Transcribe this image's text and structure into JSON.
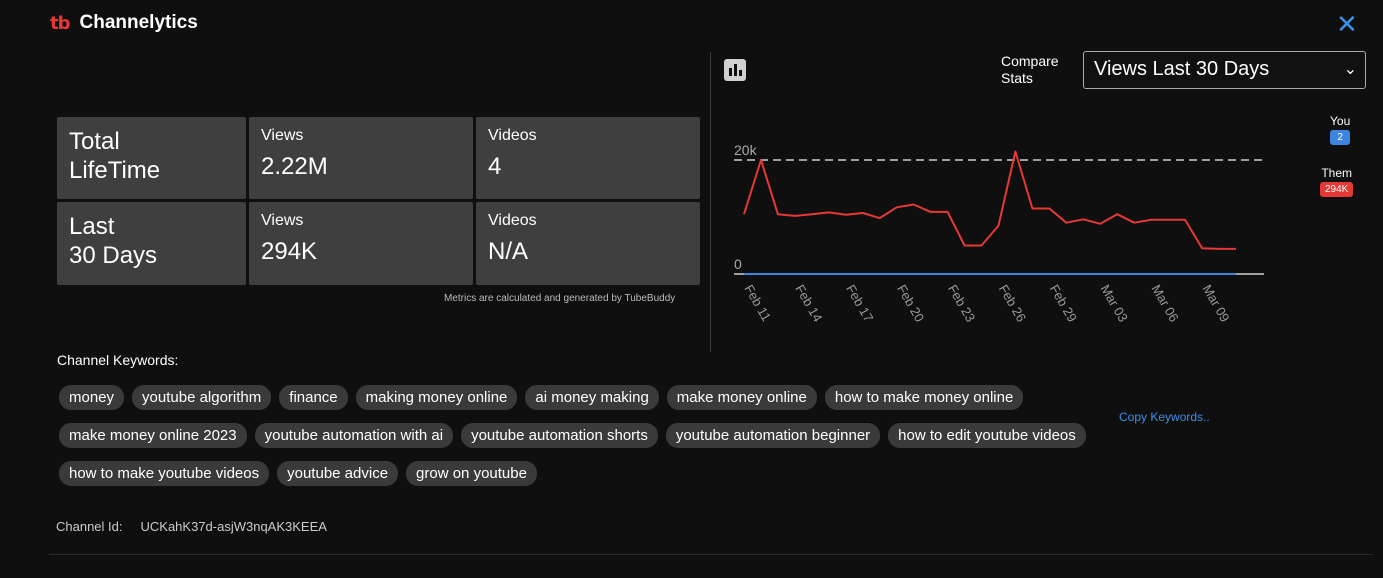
{
  "header": {
    "logo": "tb",
    "title": "Channelytics",
    "close_icon": "close-icon"
  },
  "stats": {
    "lifetime": {
      "label_line1": "Total",
      "label_line2": "LifeTime",
      "views_label": "Views",
      "views": "2.22M",
      "videos_label": "Videos",
      "videos": "4"
    },
    "last30": {
      "label_line1": "Last",
      "label_line2": "30 Days",
      "views_label": "Views",
      "views": "294K",
      "videos_label": "Videos",
      "videos": "N/A"
    }
  },
  "metrics_note": "Metrics are calculated and generated by TubeBuddy",
  "compare": {
    "label_line1": "Compare",
    "label_line2": "Stats",
    "selected": "Views Last 30 Days"
  },
  "legend": {
    "you_label": "You",
    "you_value": "2",
    "them_label": "Them",
    "them_value": "294K",
    "you_color": "#3d85e0",
    "them_color": "#e53935"
  },
  "chart_data": {
    "type": "line",
    "x": [
      "Feb 11",
      "Feb 12",
      "Feb 13",
      "Feb 14",
      "Feb 15",
      "Feb 16",
      "Feb 17",
      "Feb 18",
      "Feb 19",
      "Feb 20",
      "Feb 21",
      "Feb 22",
      "Feb 23",
      "Feb 24",
      "Feb 25",
      "Feb 26",
      "Feb 27",
      "Feb 28",
      "Feb 29",
      "Mar 01",
      "Mar 02",
      "Mar 03",
      "Mar 04",
      "Mar 05",
      "Mar 06",
      "Mar 07",
      "Mar 08",
      "Mar 09",
      "Mar 10",
      "Mar 11"
    ],
    "xticks": [
      "Feb 11",
      "Feb 14",
      "Feb 17",
      "Feb 20",
      "Feb 23",
      "Feb 26",
      "Feb 29",
      "Mar 03",
      "Mar 06",
      "Mar 09"
    ],
    "yticks": [
      "20k",
      "0"
    ],
    "ylim": [
      0,
      20000
    ],
    "series": [
      {
        "name": "Them",
        "color": "#e53935",
        "values": [
          10500,
          20000,
          10500,
          10200,
          10500,
          10800,
          10400,
          10700,
          9800,
          11700,
          12200,
          10900,
          10900,
          5000,
          5000,
          8500,
          21500,
          11500,
          11500,
          9000,
          9600,
          8800,
          10500,
          9000,
          9500,
          9500,
          9500,
          4500,
          4400,
          4400
        ]
      },
      {
        "name": "You",
        "color": "#3d85e0",
        "values": [
          0,
          0,
          0,
          0,
          0,
          0,
          0,
          0,
          0,
          0,
          0,
          0,
          0,
          0,
          0,
          0,
          0,
          0,
          0,
          0,
          0,
          0,
          0,
          0,
          0,
          0,
          0,
          0,
          0,
          0
        ]
      }
    ]
  },
  "keywords": {
    "title": "Channel Keywords:",
    "items": [
      "money",
      "youtube algorithm",
      "finance",
      "making money online",
      "ai money making",
      "make money online",
      "how to make money online",
      "make money online 2023",
      "youtube automation with ai",
      "youtube automation shorts",
      "youtube automation beginner",
      "how to edit youtube videos",
      "how to make youtube videos",
      "youtube advice",
      "grow on youtube"
    ],
    "copy_label": "Copy Keywords.."
  },
  "channel": {
    "label": "Channel Id:",
    "id": "UCKahK37d-asjW3nqAK3KEEA"
  }
}
